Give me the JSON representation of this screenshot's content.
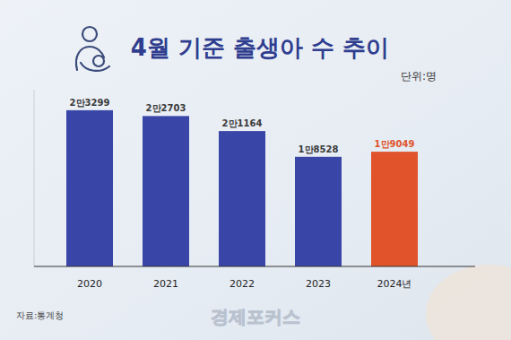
{
  "chart_data": {
    "type": "bar",
    "title": "4월 기준 출생아 수 추이",
    "subtitle": "단위:명",
    "source": "자료:통계청",
    "logo": "경제포커스",
    "categories": [
      "2020",
      "2021",
      "2022",
      "2023",
      "2024년"
    ],
    "values": [
      23299,
      22703,
      21164,
      18528,
      19049
    ],
    "value_labels": [
      "2만3299",
      "2만2703",
      "2만1164",
      "1만8528",
      "1만9049"
    ],
    "colors": [
      "#3a45a8",
      "#3a45a8",
      "#3a45a8",
      "#3a45a8",
      "#e0532b"
    ],
    "ylim": [
      7300,
      25400
    ],
    "yticks": [],
    "grid": false,
    "data_labels": true,
    "tick_labels": "x"
  }
}
